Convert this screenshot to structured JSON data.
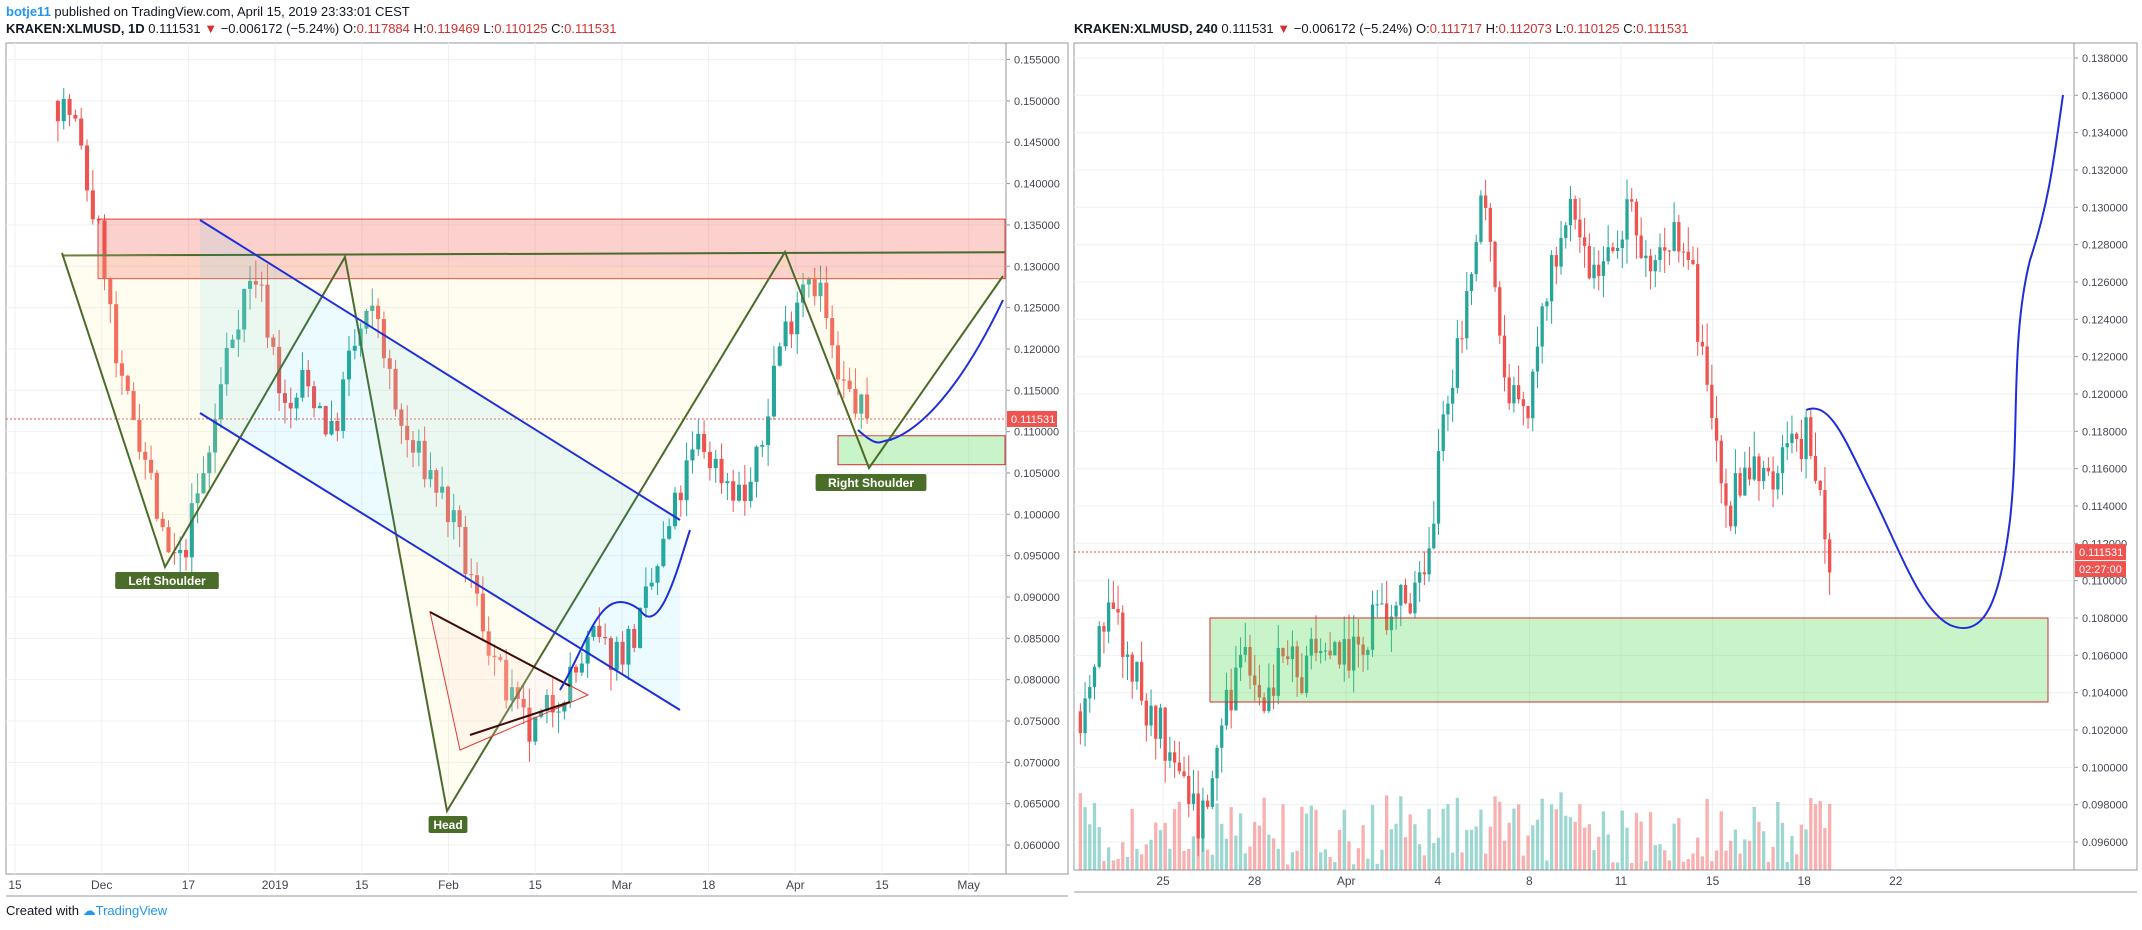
{
  "header": {
    "author": "botje11",
    "published": " published on TradingView.com, April 15, 2019 23:33:01 CEST"
  },
  "left_symbol": {
    "ticker": "KRAKEN:XLMUSD, 1D",
    "last": "0.111531",
    "change": "−0.006172 (−5.24%)",
    "o": "0.117884",
    "h": "0.119469",
    "l": "0.110125",
    "c": "0.111531"
  },
  "right_symbol": {
    "ticker": "KRAKEN:XLMUSD, 240",
    "last": "0.111531",
    "change": "−0.006172 (−5.24%)",
    "o": "0.111717",
    "h": "0.112073",
    "l": "0.110125",
    "c": "0.111531"
  },
  "ohlc_labels": {
    "o": "O:",
    "h": "H:",
    "l": "L:",
    "c": "C:"
  },
  "footer": {
    "created": "Created with",
    "brand": "TradingView"
  },
  "colors": {
    "up": "#26a69a",
    "down": "#ef5350",
    "pattern": "#4a6b2a",
    "channel": "#1e2ed8",
    "bg_panel": "#ffffff",
    "grid": "#eef0f3"
  },
  "icons": {
    "down_arrow": "triangle-down-icon",
    "brand": "tradingview-logo-icon"
  },
  "chart_data": [
    {
      "type": "candlestick",
      "symbol": "KRAKEN:XLMUSD",
      "interval": "1D",
      "ylim": [
        0.0565,
        0.157
      ],
      "price_ticks": [
        "0.155000",
        "0.150000",
        "0.145000",
        "0.140000",
        "0.135000",
        "0.130000",
        "0.125000",
        "0.120000",
        "0.115000",
        "0.110000",
        "0.105000",
        "0.100000",
        "0.095000",
        "0.090000",
        "0.085000",
        "0.080000",
        "0.075000",
        "0.070000",
        "0.065000",
        "0.060000"
      ],
      "time_ticks": [
        "15",
        "Dec",
        "17",
        "2019",
        "15",
        "Feb",
        "15",
        "Mar",
        "18",
        "Apr",
        "15",
        "May"
      ],
      "last_price": "0.111531",
      "close_path": [
        0.15,
        0.148,
        0.139,
        0.131,
        0.115,
        0.112,
        0.105,
        0.095,
        0.094,
        0.101,
        0.108,
        0.119,
        0.126,
        0.129,
        0.121,
        0.111,
        0.116,
        0.114,
        0.109,
        0.118,
        0.123,
        0.124,
        0.113,
        0.108,
        0.106,
        0.103,
        0.098,
        0.092,
        0.086,
        0.08,
        0.076,
        0.073,
        0.076,
        0.079,
        0.081,
        0.085,
        0.083,
        0.084,
        0.086,
        0.092,
        0.098,
        0.104,
        0.109,
        0.106,
        0.104,
        0.102,
        0.107,
        0.119,
        0.124,
        0.13,
        0.127,
        0.116,
        0.114,
        0.1115
      ],
      "pattern": "inverse head and shoulders",
      "annotations": [
        "Left Shoulder",
        "Head",
        "Right Shoulder"
      ],
      "zones": [
        {
          "kind": "resistance",
          "from": 0.1285,
          "to": 0.1357
        },
        {
          "kind": "support",
          "from": 0.106,
          "to": 0.1095
        }
      ],
      "neckline": [
        0.1313,
        0.1317
      ],
      "descending_channel": true,
      "projected_path": "drop to about 0.109 then rise above 0.125"
    },
    {
      "type": "candlestick",
      "symbol": "KRAKEN:XLMUSD",
      "interval": "240",
      "ylim": [
        0.0945,
        0.1388
      ],
      "price_ticks": [
        "0.138000",
        "0.136000",
        "0.134000",
        "0.132000",
        "0.130000",
        "0.128000",
        "0.126000",
        "0.124000",
        "0.122000",
        "0.120000",
        "0.118000",
        "0.116000",
        "0.114000",
        "0.112000",
        "0.110000",
        "0.108000",
        "0.106000",
        "0.104000",
        "0.102000",
        "0.100000",
        "0.098000",
        "0.096000"
      ],
      "time_ticks": [
        "25",
        "28",
        "Apr",
        "4",
        "8",
        "11",
        "15",
        "18",
        "22"
      ],
      "last_price": "0.111531",
      "countdown": "02:27:00",
      "close_path": [
        0.103,
        0.108,
        0.107,
        0.104,
        0.102,
        0.099,
        0.097,
        0.103,
        0.106,
        0.104,
        0.106,
        0.105,
        0.107,
        0.106,
        0.107,
        0.108,
        0.109,
        0.11,
        0.119,
        0.124,
        0.131,
        0.12,
        0.118,
        0.126,
        0.13,
        0.127,
        0.128,
        0.13,
        0.126,
        0.128,
        0.128,
        0.119,
        0.114,
        0.116,
        0.116,
        0.117,
        0.118,
        0.1115
      ],
      "zones": [
        {
          "kind": "support",
          "from": 0.1035,
          "to": 0.108
        }
      ],
      "volume": true,
      "projected_path": "fall to about 0.1077 then rally to about 0.136"
    }
  ]
}
